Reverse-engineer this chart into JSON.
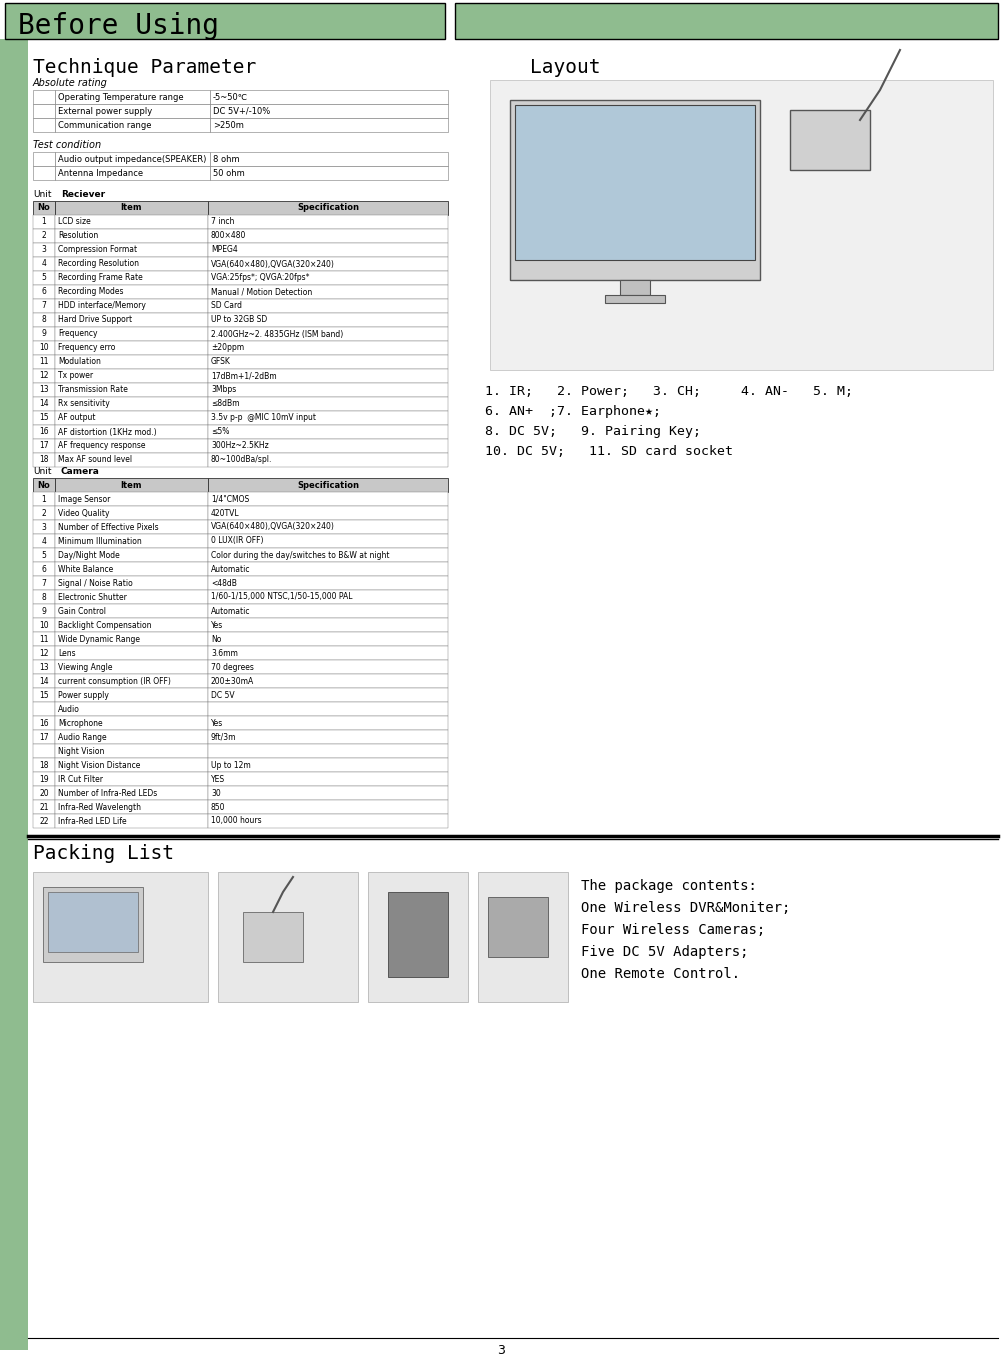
{
  "bg_color": "#ffffff",
  "green_color": "#8fbc8f",
  "title_header": "Before Using",
  "section1_title": "Technique Parameter",
  "section2_title": "Layout",
  "section3_title": "Packing List",
  "absolute_rating_label": "Absolute rating",
  "absolute_rating_rows": [
    [
      "Operating Temperature range",
      "-5~50℃"
    ],
    [
      "External power supply",
      "DC 5V+/-10%"
    ],
    [
      "Communication range",
      ">250m"
    ]
  ],
  "test_condition_label": "Test condition",
  "test_condition_rows": [
    [
      "Audio output impedance(SPEAKER)",
      "8 ohm"
    ],
    [
      "Antenna Impedance",
      "50 ohm"
    ]
  ],
  "receiver_label": "Reciever",
  "receiver_rows": [
    [
      "1",
      "LCD size",
      "7 inch"
    ],
    [
      "2",
      "Resolution",
      "800×480"
    ],
    [
      "3",
      "Compression Format",
      "MPEG4"
    ],
    [
      "4",
      "Recording Resolution",
      "VGA(640×480),QVGA(320×240)"
    ],
    [
      "5",
      "Recording Frame Rate",
      "VGA:25fps*; QVGA:20fps*"
    ],
    [
      "6",
      "Recording Modes",
      "Manual / Motion Detection"
    ],
    [
      "7",
      "HDD interface/Memory",
      "SD Card"
    ],
    [
      "8",
      "Hard Drive Support",
      "UP to 32GB SD"
    ],
    [
      "9",
      "Frequency",
      "2.400GHz~2. 4835GHz (ISM band)"
    ],
    [
      "10",
      "Frequency erro",
      "±20ppm"
    ],
    [
      "11",
      "Modulation",
      "GFSK"
    ],
    [
      "12",
      "Tx power",
      "17dBm+1/-2dBm"
    ],
    [
      "13",
      "Transmission Rate",
      "3Mbps"
    ],
    [
      "14",
      "Rx sensitivity",
      "≤8dBm"
    ],
    [
      "15",
      "AF output",
      "3.5v p-p  @MIC 10mV input"
    ],
    [
      "16",
      "AF distortion (1KHz mod.)",
      "≤5%"
    ],
    [
      "17",
      "AF frequency response",
      "300Hz~2.5KHz"
    ],
    [
      "18",
      "Max AF sound level",
      "80~100dBa/spl."
    ]
  ],
  "camera_label": "Camera",
  "camera_rows": [
    [
      "1",
      "Image Sensor",
      "1/4\"CMOS"
    ],
    [
      "2",
      "Video Quality",
      "420TVL"
    ],
    [
      "3",
      "Number of Effective Pixels",
      "VGA(640×480),QVGA(320×240)"
    ],
    [
      "4",
      "Minimum Illumination",
      "0 LUX(IR OFF)"
    ],
    [
      "5",
      "Day/Night Mode",
      "Color during the day/switches to B&W at night"
    ],
    [
      "6",
      "White Balance",
      "Automatic"
    ],
    [
      "7",
      "Signal / Noise Ratio",
      "<48dB"
    ],
    [
      "8",
      "Electronic Shutter",
      "1/60-1/15,000 NTSC,1/50-15,000 PAL"
    ],
    [
      "9",
      "Gain Control",
      "Automatic"
    ],
    [
      "10",
      "Backlight Compensation",
      "Yes"
    ],
    [
      "11",
      "Wide Dynamic Range",
      "No"
    ],
    [
      "12",
      "Lens",
      "3.6mm"
    ],
    [
      "13",
      "Viewing Angle",
      "70 degrees"
    ],
    [
      "14",
      "current consumption (IR OFF)",
      "200±30mA"
    ],
    [
      "15",
      "Power supply",
      "DC 5V"
    ],
    [
      "",
      "Audio",
      ""
    ],
    [
      "16",
      "Microphone",
      "Yes"
    ],
    [
      "17",
      "Audio Range",
      "9ft/3m"
    ],
    [
      "",
      "Night Vision",
      ""
    ],
    [
      "18",
      "Night Vision Distance",
      "Up to 12m"
    ],
    [
      "19",
      "IR Cut Filter",
      "YES"
    ],
    [
      "20",
      "Number of Infra-Red LEDs",
      "30"
    ],
    [
      "21",
      "Infra-Red Wavelength",
      "850"
    ],
    [
      "22",
      "Infra-Red LED Life",
      "10,000 hours"
    ]
  ],
  "layout_text_lines": [
    "1. IR;   2. Power;   3. CH;     4. AN-   5. M;",
    "6. AN+  ;7. Earphone★;",
    "8. DC 5V;   9. Pairing Key;",
    "10. DC 5V;   11. SD card socket"
  ],
  "packing_text_lines": [
    "The package contents:",
    "One Wireless DVR&Moniter;",
    "Four Wireless Cameras;",
    "Five DC 5V Adapters;",
    "One Remote Control."
  ],
  "page_number": "3"
}
